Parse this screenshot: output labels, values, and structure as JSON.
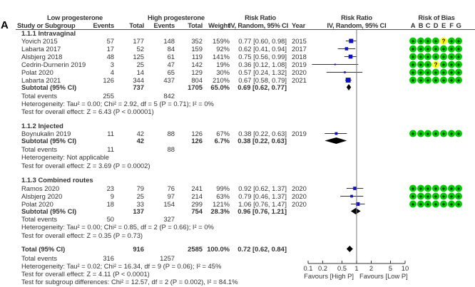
{
  "panel_label": "A",
  "headers": {
    "study": "Study or Subgroup",
    "low_group": "Low progesterone",
    "high_group": "High progesterone",
    "events": "Events",
    "total": "Total",
    "weight": "Weight",
    "rr_title": "Risk Ratio",
    "rr_method": "IV, Random, 95% CI",
    "year": "Year",
    "plot_title": "Risk Ratio",
    "plot_method": "IV, Random, 95% CI",
    "bias_title": "Risk of Bias",
    "bias_domains": [
      "A",
      "B",
      "C",
      "D",
      "E",
      "F",
      "G"
    ]
  },
  "chart_data": {
    "type": "forest",
    "scale": "log",
    "xlim": [
      0.1,
      10
    ],
    "ticks": [
      "0.1",
      "0.2",
      "0.5",
      "1",
      "2",
      "5",
      "10"
    ],
    "tick_values": [
      0.1,
      0.2,
      0.5,
      1,
      2,
      5,
      10
    ],
    "xlabel_left": "Favours [High P]",
    "xlabel_right": "Favours [Low P]",
    "colors": {
      "square": "#1010c8",
      "diamond": "#000000",
      "low_risk": "#00cc00",
      "unclear": "#ffff00"
    },
    "subgroups": [
      {
        "title": "1.1.1 Intravaginal",
        "studies": [
          {
            "name": "Yovich 2015",
            "le": "57",
            "lt": "177",
            "he": "148",
            "ht": "352",
            "weight_label": "159%",
            "weight": 15.9,
            "rr": 0.77,
            "lo": 0.6,
            "hi": 0.98,
            "ci_label": "0.77 [0.60, 0.98]",
            "year": "2015",
            "bias": [
              "+",
              "+",
              "+",
              "+",
              "?",
              "+",
              "+"
            ]
          },
          {
            "name": "Labarta 2017",
            "le": "17",
            "lt": "52",
            "he": "84",
            "ht": "159",
            "weight_label": "92%",
            "weight": 9.2,
            "rr": 0.62,
            "lo": 0.41,
            "hi": 0.94,
            "ci_label": "0.62 [0.41, 0.94]",
            "year": "2017",
            "bias": [
              "+",
              "+",
              "+",
              "+",
              "+",
              "+",
              "+"
            ]
          },
          {
            "name": "Alsbjerg 2018",
            "le": "48",
            "lt": "125",
            "he": "61",
            "ht": "119",
            "weight_label": "141%",
            "weight": 14.1,
            "rr": 0.75,
            "lo": 0.56,
            "hi": 0.99,
            "ci_label": "0.75 [0.56, 0.99]",
            "year": "2018",
            "bias": [
              "+",
              "+",
              "+",
              "+",
              "+",
              "+",
              "+"
            ]
          },
          {
            "name": "Cedrin-Durnerin 2019",
            "le": "3",
            "lt": "25",
            "he": "47",
            "ht": "142",
            "weight_label": "19%",
            "weight": 1.9,
            "rr": 0.36,
            "lo": 0.12,
            "hi": 1.08,
            "ci_label": "0.36 [0.12, 1.08]",
            "year": "2019",
            "bias": [
              "+",
              "+",
              "+",
              "?",
              "+",
              "+",
              "+"
            ]
          },
          {
            "name": "Polat 2020",
            "le": "4",
            "lt": "14",
            "he": "65",
            "ht": "129",
            "weight_label": "30%",
            "weight": 3.0,
            "rr": 0.57,
            "lo": 0.24,
            "hi": 1.32,
            "ci_label": "0.57 [0.24, 1.32]",
            "year": "2020",
            "bias": [
              "+",
              "+",
              "+",
              "+",
              "+",
              "+",
              "+"
            ]
          },
          {
            "name": "Labarta 2021",
            "le": "126",
            "lt": "344",
            "he": "437",
            "ht": "804",
            "weight_label": "210%",
            "weight": 21.0,
            "rr": 0.67,
            "lo": 0.58,
            "hi": 0.79,
            "ci_label": "0.67 [0.58, 0.79]",
            "year": "2021",
            "bias": [
              "+",
              "+",
              "+",
              "+",
              "+",
              "+",
              "+"
            ]
          }
        ],
        "subtotal": {
          "label": "Subtotal (95% CI)",
          "lt": "737",
          "ht": "1705",
          "weight_label": "65.0%",
          "rr": 0.69,
          "lo": 0.62,
          "hi": 0.77,
          "ci_label": "0.69 [0.62, 0.77]"
        },
        "total_events": {
          "label": "Total events",
          "low": "255",
          "high": "842"
        },
        "heterogeneity": "Heterogeneity: Tau² = 0.00; Chi² = 2.92, df = 5 (P = 0.71); I² = 0%",
        "overall": "Test for overall effect: Z = 6.43 (P < 0.00001)"
      },
      {
        "title": "1.1.2 Injected",
        "studies": [
          {
            "name": "Boynukalin 2019",
            "le": "11",
            "lt": "42",
            "he": "88",
            "ht": "126",
            "weight_label": "67%",
            "weight": 6.7,
            "rr": 0.38,
            "lo": 0.22,
            "hi": 0.63,
            "ci_label": "0.38 [0.22, 0.63]",
            "year": "2019",
            "bias": [
              "+",
              "+",
              "+",
              "+",
              "+",
              "+",
              "+"
            ]
          }
        ],
        "subtotal": {
          "label": "Subtotal (95% CI)",
          "lt": "42",
          "ht": "126",
          "weight_label": "6.7%",
          "rr": 0.38,
          "lo": 0.22,
          "hi": 0.63,
          "ci_label": "0.38 [0.22, 0.63]"
        },
        "total_events": {
          "label": "Total events",
          "low": "11",
          "high": "88"
        },
        "heterogeneity": "Heterogeneity: Not applicable",
        "overall": "Test for overall effect: Z = 3.69 (P = 0.0002)"
      },
      {
        "title": "1.1.3 Combined routes",
        "studies": [
          {
            "name": "Ramos 2020",
            "le": "23",
            "lt": "79",
            "he": "76",
            "ht": "241",
            "weight_label": "99%",
            "weight": 9.9,
            "rr": 0.92,
            "lo": 0.62,
            "hi": 1.37,
            "ci_label": "0.92 [0.62, 1.37]",
            "year": "2020",
            "bias": [
              "+",
              "+",
              "+",
              "+",
              "+",
              "+",
              "+"
            ]
          },
          {
            "name": "Alsbjerg 2020",
            "le": "9",
            "lt": "25",
            "he": "97",
            "ht": "214",
            "weight_label": "63%",
            "weight": 6.3,
            "rr": 0.79,
            "lo": 0.46,
            "hi": 1.37,
            "ci_label": "0.79 [0.46, 1.37]",
            "year": "2020",
            "bias": [
              "+",
              "+",
              "+",
              "+",
              "+",
              "+",
              "+"
            ]
          },
          {
            "name": "Polat 2020",
            "le": "18",
            "lt": "33",
            "he": "154",
            "ht": "299",
            "weight_label": "121%",
            "weight": 12.1,
            "rr": 1.06,
            "lo": 0.76,
            "hi": 1.47,
            "ci_label": "1.06 [0.76, 1.47]",
            "year": "2020",
            "bias": [
              "+",
              "+",
              "+",
              "+",
              "+",
              "+",
              "+"
            ]
          }
        ],
        "subtotal": {
          "label": "Subtotal (95% CI)",
          "lt": "137",
          "ht": "754",
          "weight_label": "28.3%",
          "rr": 0.96,
          "lo": 0.76,
          "hi": 1.21,
          "ci_label": "0.96 [0.76, 1.21]"
        },
        "total_events": {
          "label": "Total events",
          "low": "50",
          "high": "327"
        },
        "heterogeneity": "Heterogeneity: Tau² = 0.00; Chi² = 0.85, df = 2 (P = 0.66); I² = 0%",
        "overall": "Test for overall effect: Z = 0.35 (P = 0.73)"
      }
    ],
    "total": {
      "label": "Total (95% CI)",
      "lt": "916",
      "ht": "2585",
      "weight_label": "100.0%",
      "rr": 0.72,
      "lo": 0.62,
      "hi": 0.84,
      "ci_label": "0.72 [0.62, 0.84]"
    },
    "total_events": {
      "label": "Total events",
      "low": "316",
      "high": "1257"
    },
    "heterogeneity": "Heterogeneity: Tau² = 0.02; Chi² = 16.34, df = 9 (P = 0.06); I² = 45%",
    "overall": "Test for overall effect: Z = 4.11 (P < 0.0001)",
    "subgroup_diff": "Test for subgroup differences: Chi² = 12.57, df = 2 (P = 0.002), I² = 84.1%"
  }
}
